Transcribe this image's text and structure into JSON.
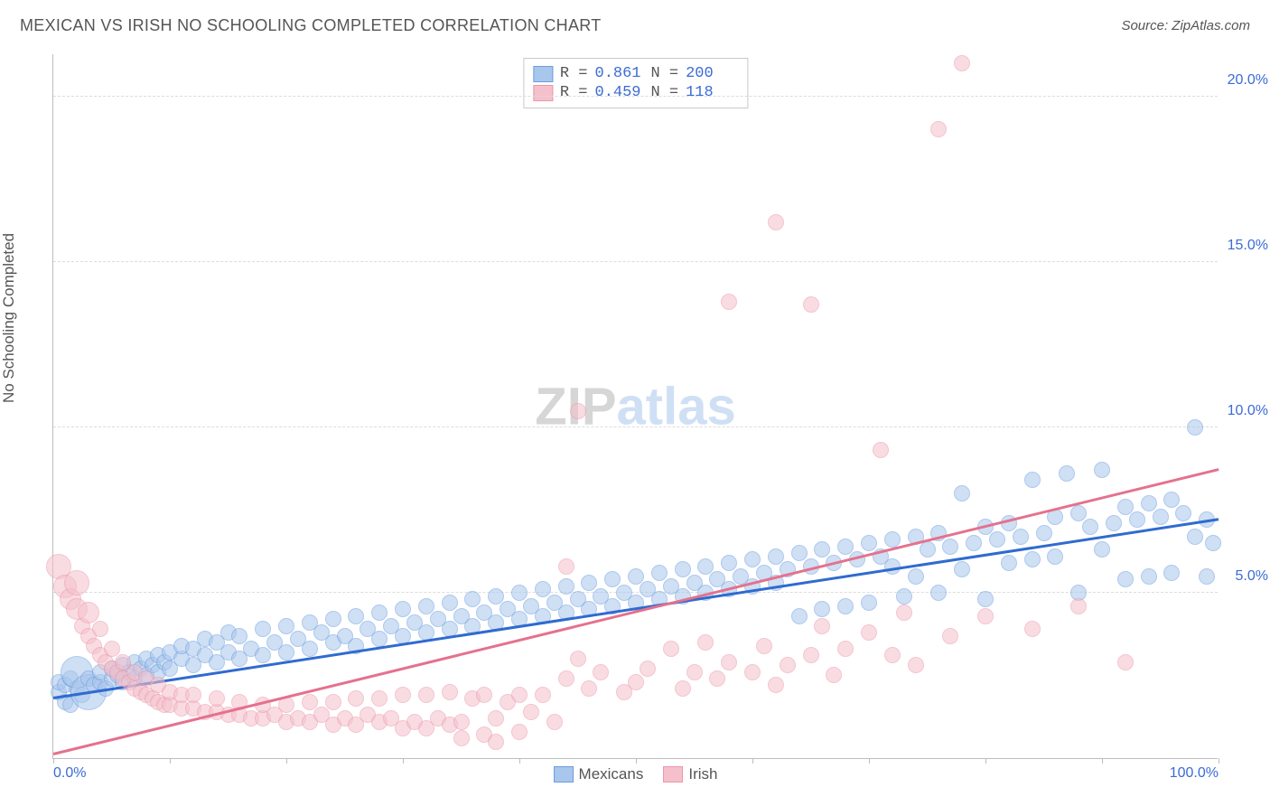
{
  "title": "MEXICAN VS IRISH NO SCHOOLING COMPLETED CORRELATION CHART",
  "source": "Source: ZipAtlas.com",
  "y_axis_label": "No Schooling Completed",
  "watermark": {
    "part1": "ZIP",
    "part2": "atlas",
    "fontsize": 58
  },
  "chart": {
    "type": "scatter",
    "background_color": "#ffffff",
    "grid_color": "#dcdcdc",
    "axis_color": "#bdbdbd",
    "tick_label_color": "#3b6bd6",
    "axis_label_color": "#555555",
    "title_color": "#555555",
    "title_fontsize": 18,
    "label_fontsize": 17,
    "tick_fontsize": 16,
    "xlim": [
      0,
      100
    ],
    "ylim": [
      0,
      21.3
    ],
    "x_ticks_major": [
      0,
      100
    ],
    "x_ticks_minor": [
      10,
      20,
      30,
      40,
      50,
      60,
      70,
      80,
      90
    ],
    "y_ticks": [
      5,
      10,
      15,
      20
    ],
    "y_tick_labels": [
      "5.0%",
      "10.0%",
      "15.0%",
      "20.0%"
    ],
    "x_tick_labels": {
      "0": "0.0%",
      "100": "100.0%"
    },
    "marker_radius": 9,
    "marker_stroke_width": 1,
    "series": [
      {
        "name": "Mexicans",
        "fill_color": "#a9c6ec",
        "stroke_color": "#6b9de0",
        "fill_opacity": 0.55,
        "line_color": "#2f6bd0",
        "line_width": 2.5,
        "trend": {
          "x0": 0,
          "y0": 1.8,
          "x1": 100,
          "y1": 7.2
        },
        "R": "0.861",
        "N": "200",
        "points": [
          [
            0.5,
            2.0
          ],
          [
            0.5,
            2.3
          ],
          [
            1,
            1.7
          ],
          [
            1,
            2.2
          ],
          [
            1.5,
            1.6
          ],
          [
            1.5,
            2.4
          ],
          [
            2,
            2.1
          ],
          [
            2,
            2.6,
            18
          ],
          [
            2.5,
            1.9
          ],
          [
            3,
            2.0,
            20
          ],
          [
            3,
            2.4
          ],
          [
            3.5,
            2.2
          ],
          [
            4,
            2.3
          ],
          [
            4,
            2.6
          ],
          [
            4.5,
            2.1
          ],
          [
            5,
            2.4
          ],
          [
            5,
            2.7
          ],
          [
            5.5,
            2.5
          ],
          [
            6,
            2.3
          ],
          [
            6,
            2.8
          ],
          [
            6.5,
            2.6
          ],
          [
            7,
            2.4
          ],
          [
            7,
            2.9
          ],
          [
            7.5,
            2.7
          ],
          [
            8,
            2.5
          ],
          [
            8,
            3.0
          ],
          [
            8.5,
            2.8
          ],
          [
            9,
            2.6
          ],
          [
            9,
            3.1
          ],
          [
            9.5,
            2.9
          ],
          [
            10,
            2.7
          ],
          [
            10,
            3.2
          ],
          [
            11,
            3.0
          ],
          [
            11,
            3.4
          ],
          [
            12,
            2.8
          ],
          [
            12,
            3.3
          ],
          [
            13,
            3.1
          ],
          [
            13,
            3.6
          ],
          [
            14,
            2.9
          ],
          [
            14,
            3.5
          ],
          [
            15,
            3.2
          ],
          [
            15,
            3.8
          ],
          [
            16,
            3.0
          ],
          [
            16,
            3.7
          ],
          [
            17,
            3.3
          ],
          [
            18,
            3.1
          ],
          [
            18,
            3.9
          ],
          [
            19,
            3.5
          ],
          [
            20,
            3.2
          ],
          [
            20,
            4.0
          ],
          [
            21,
            3.6
          ],
          [
            22,
            3.3
          ],
          [
            22,
            4.1
          ],
          [
            23,
            3.8
          ],
          [
            24,
            3.5
          ],
          [
            24,
            4.2
          ],
          [
            25,
            3.7
          ],
          [
            26,
            3.4
          ],
          [
            26,
            4.3
          ],
          [
            27,
            3.9
          ],
          [
            28,
            3.6
          ],
          [
            28,
            4.4
          ],
          [
            29,
            4.0
          ],
          [
            30,
            3.7
          ],
          [
            30,
            4.5
          ],
          [
            31,
            4.1
          ],
          [
            32,
            3.8
          ],
          [
            32,
            4.6
          ],
          [
            33,
            4.2
          ],
          [
            34,
            3.9
          ],
          [
            34,
            4.7
          ],
          [
            35,
            4.3
          ],
          [
            36,
            4.0
          ],
          [
            36,
            4.8
          ],
          [
            37,
            4.4
          ],
          [
            38,
            4.1
          ],
          [
            38,
            4.9
          ],
          [
            39,
            4.5
          ],
          [
            40,
            4.2
          ],
          [
            40,
            5.0
          ],
          [
            41,
            4.6
          ],
          [
            42,
            4.3
          ],
          [
            42,
            5.1
          ],
          [
            43,
            4.7
          ],
          [
            44,
            4.4
          ],
          [
            44,
            5.2
          ],
          [
            45,
            4.8
          ],
          [
            46,
            4.5
          ],
          [
            46,
            5.3
          ],
          [
            47,
            4.9
          ],
          [
            48,
            4.6
          ],
          [
            48,
            5.4
          ],
          [
            49,
            5.0
          ],
          [
            50,
            4.7
          ],
          [
            50,
            5.5
          ],
          [
            51,
            5.1
          ],
          [
            52,
            4.8
          ],
          [
            52,
            5.6
          ],
          [
            53,
            5.2
          ],
          [
            54,
            4.9
          ],
          [
            54,
            5.7
          ],
          [
            55,
            5.3
          ],
          [
            56,
            5.0
          ],
          [
            56,
            5.8
          ],
          [
            57,
            5.4
          ],
          [
            58,
            5.1
          ],
          [
            58,
            5.9
          ],
          [
            59,
            5.5
          ],
          [
            60,
            5.2
          ],
          [
            60,
            6.0
          ],
          [
            61,
            5.6
          ],
          [
            62,
            5.3
          ],
          [
            62,
            6.1
          ],
          [
            63,
            5.7
          ],
          [
            64,
            4.3
          ],
          [
            64,
            6.2
          ],
          [
            65,
            5.8
          ],
          [
            66,
            4.5
          ],
          [
            66,
            6.3
          ],
          [
            67,
            5.9
          ],
          [
            68,
            4.6
          ],
          [
            68,
            6.4
          ],
          [
            69,
            6.0
          ],
          [
            70,
            4.7
          ],
          [
            70,
            6.5
          ],
          [
            71,
            6.1
          ],
          [
            72,
            5.8
          ],
          [
            72,
            6.6
          ],
          [
            73,
            4.9
          ],
          [
            74,
            5.5
          ],
          [
            74,
            6.7
          ],
          [
            75,
            6.3
          ],
          [
            76,
            5.0
          ],
          [
            76,
            6.8
          ],
          [
            77,
            6.4
          ],
          [
            78,
            5.7
          ],
          [
            78,
            8.0
          ],
          [
            79,
            6.5
          ],
          [
            80,
            4.8
          ],
          [
            80,
            7.0
          ],
          [
            81,
            6.6
          ],
          [
            82,
            5.9
          ],
          [
            82,
            7.1
          ],
          [
            83,
            6.7
          ],
          [
            84,
            6.0
          ],
          [
            84,
            8.4
          ],
          [
            85,
            6.8
          ],
          [
            86,
            6.1
          ],
          [
            86,
            7.3
          ],
          [
            87,
            8.6
          ],
          [
            88,
            5.0
          ],
          [
            88,
            7.4
          ],
          [
            89,
            7.0
          ],
          [
            90,
            6.3
          ],
          [
            90,
            8.7
          ],
          [
            91,
            7.1
          ],
          [
            92,
            5.4
          ],
          [
            92,
            7.6
          ],
          [
            93,
            7.2
          ],
          [
            94,
            5.5
          ],
          [
            94,
            7.7
          ],
          [
            95,
            7.3
          ],
          [
            96,
            5.6
          ],
          [
            96,
            7.8
          ],
          [
            97,
            7.4
          ],
          [
            98,
            6.7
          ],
          [
            98,
            10.0
          ],
          [
            99,
            5.5
          ],
          [
            99,
            7.2
          ],
          [
            99.5,
            6.5
          ]
        ]
      },
      {
        "name": "Irish",
        "fill_color": "#f5c0cc",
        "stroke_color": "#eb97aa",
        "fill_opacity": 0.55,
        "line_color": "#e5718d",
        "line_width": 2.5,
        "trend": {
          "x0": 0,
          "y0": 0.1,
          "x1": 100,
          "y1": 8.7
        },
        "R": "0.459",
        "N": "118",
        "points": [
          [
            0.5,
            5.8,
            14
          ],
          [
            1,
            5.2,
            13
          ],
          [
            1.5,
            4.8,
            12
          ],
          [
            2,
            4.5,
            12
          ],
          [
            2,
            5.3,
            14
          ],
          [
            2.5,
            4.0
          ],
          [
            3,
            3.7
          ],
          [
            3,
            4.4,
            12
          ],
          [
            3.5,
            3.4
          ],
          [
            4,
            3.1
          ],
          [
            4,
            3.9
          ],
          [
            4.5,
            2.9
          ],
          [
            5,
            2.7
          ],
          [
            5,
            3.3
          ],
          [
            5.5,
            2.6
          ],
          [
            6,
            2.4
          ],
          [
            6,
            2.9
          ],
          [
            6.5,
            2.3
          ],
          [
            7,
            2.1
          ],
          [
            7,
            2.6
          ],
          [
            7.5,
            2.0
          ],
          [
            8,
            1.9
          ],
          [
            8,
            2.4
          ],
          [
            8.5,
            1.8
          ],
          [
            9,
            1.7
          ],
          [
            9,
            2.2
          ],
          [
            9.5,
            1.6
          ],
          [
            10,
            1.6
          ],
          [
            10,
            2.0
          ],
          [
            11,
            1.5
          ],
          [
            11,
            1.9
          ],
          [
            12,
            1.5
          ],
          [
            12,
            1.9
          ],
          [
            13,
            1.4
          ],
          [
            14,
            1.4
          ],
          [
            14,
            1.8
          ],
          [
            15,
            1.3
          ],
          [
            16,
            1.3
          ],
          [
            16,
            1.7
          ],
          [
            17,
            1.2
          ],
          [
            18,
            1.2
          ],
          [
            18,
            1.6
          ],
          [
            19,
            1.3
          ],
          [
            20,
            1.1
          ],
          [
            20,
            1.6
          ],
          [
            21,
            1.2
          ],
          [
            22,
            1.1
          ],
          [
            22,
            1.7
          ],
          [
            23,
            1.3
          ],
          [
            24,
            1.0
          ],
          [
            24,
            1.7
          ],
          [
            25,
            1.2
          ],
          [
            26,
            1.0
          ],
          [
            26,
            1.8
          ],
          [
            27,
            1.3
          ],
          [
            28,
            1.1
          ],
          [
            28,
            1.8
          ],
          [
            29,
            1.2
          ],
          [
            30,
            0.9
          ],
          [
            30,
            1.9
          ],
          [
            31,
            1.1
          ],
          [
            32,
            0.9
          ],
          [
            32,
            1.9
          ],
          [
            33,
            1.2
          ],
          [
            34,
            1.0
          ],
          [
            34,
            2.0
          ],
          [
            35,
            1.1
          ],
          [
            35,
            0.6
          ],
          [
            36,
            1.8
          ],
          [
            37,
            0.7
          ],
          [
            37,
            1.9
          ],
          [
            38,
            1.2
          ],
          [
            38,
            0.5
          ],
          [
            39,
            1.7
          ],
          [
            40,
            0.8
          ],
          [
            40,
            1.9
          ],
          [
            41,
            1.4
          ],
          [
            42,
            1.9
          ],
          [
            43,
            1.1
          ],
          [
            44,
            2.4
          ],
          [
            44,
            5.8
          ],
          [
            45,
            3.0
          ],
          [
            45,
            10.5
          ],
          [
            46,
            2.1
          ],
          [
            47,
            2.6
          ],
          [
            49,
            2.0
          ],
          [
            50,
            2.3
          ],
          [
            51,
            2.7
          ],
          [
            53,
            3.3
          ],
          [
            54,
            2.1
          ],
          [
            55,
            2.6
          ],
          [
            56,
            3.5
          ],
          [
            57,
            2.4
          ],
          [
            58,
            2.9
          ],
          [
            58,
            13.8
          ],
          [
            60,
            2.6
          ],
          [
            61,
            3.4
          ],
          [
            62,
            2.2
          ],
          [
            62,
            16.2
          ],
          [
            63,
            2.8
          ],
          [
            65,
            3.1
          ],
          [
            65,
            13.7
          ],
          [
            66,
            4.0
          ],
          [
            67,
            2.5
          ],
          [
            68,
            3.3
          ],
          [
            70,
            3.8
          ],
          [
            71,
            9.3
          ],
          [
            72,
            3.1
          ],
          [
            73,
            4.4
          ],
          [
            74,
            2.8
          ],
          [
            76,
            19.0
          ],
          [
            77,
            3.7
          ],
          [
            78,
            21.0
          ],
          [
            80,
            4.3
          ],
          [
            84,
            3.9
          ],
          [
            88,
            4.6
          ],
          [
            92,
            2.9
          ]
        ]
      }
    ]
  },
  "bottom_legend": [
    {
      "label": "Mexicans",
      "swatch_fill": "#a9c6ec",
      "swatch_stroke": "#6b9de0"
    },
    {
      "label": "Irish",
      "swatch_fill": "#f5c0cc",
      "swatch_stroke": "#eb97aa"
    }
  ]
}
